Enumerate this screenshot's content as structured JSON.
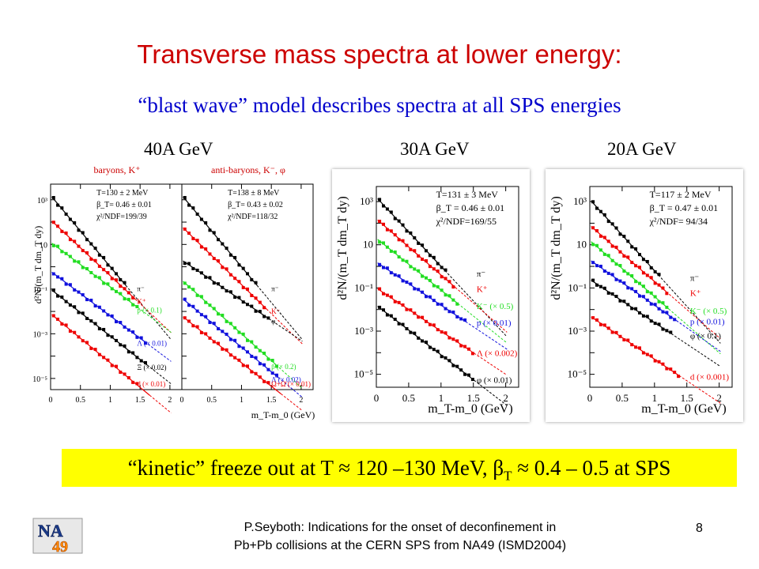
{
  "slide": {
    "title": "Transverse mass spectra at lower energy:",
    "subtitle": "“blast wave” model describes spectra at all SPS energies",
    "energies": [
      "40A GeV",
      "30A GeV",
      "20A GeV"
    ],
    "conclusion": {
      "prefix": "“kinetic” freeze out at  T ≈ 120 –130 MeV, β",
      "sub": "T",
      "suffix": " ≈ 0.4 – 0.5 at SPS"
    },
    "footer_line1": "P.Seyboth: Indications for the onset of deconfinement in",
    "footer_line2": "Pb+Pb collisions at the CERN SPS from NA49   (ISMD2004)",
    "page_number": "8",
    "logo_text": [
      "NA",
      "49"
    ]
  },
  "colors": {
    "title": "#cc0000",
    "subtitle": "#0000cc",
    "highlight": "#ffff00",
    "black": "#000000",
    "red": "#ee0000",
    "green": "#22dd22",
    "blue": "#1111dd"
  },
  "chart_data": [
    {
      "type": "scatter",
      "panel": "40A GeV, baryons",
      "title": "baryons, K⁺",
      "ylabel": "d²N/(m_T dm_T dy)",
      "xlim": [
        0,
        2.2
      ],
      "ylim_log10": [
        -5.5,
        3.7
      ],
      "x_ticks": [
        "0",
        "0.5",
        "1",
        "1.5",
        "2"
      ],
      "y_ticks": [
        "10³",
        "10",
        "10⁻¹",
        "10⁻³",
        "10⁻⁵"
      ],
      "fit_text": [
        "T=130 ± 2 MeV",
        "β_T= 0.46 ±  0.01",
        "χ²/NDF=199/39"
      ],
      "series": [
        {
          "name": "π⁻",
          "color": "#000000",
          "a": 3.2,
          "b": 3.2,
          "xmax": 1.3
        },
        {
          "name": "K⁺",
          "color": "#ee0000",
          "a": 2.1,
          "b": 2.5,
          "xmax": 1.45
        },
        {
          "name": "p (× 0.1)",
          "color": "#22dd22",
          "a": 1.1,
          "b": 2.0,
          "xmax": 1.5
        },
        {
          "name": "Λ (× 0.01)",
          "color": "#1111dd",
          "a": -0.2,
          "b": 2.0,
          "xmax": 1.6
        },
        {
          "name": "Ξ (× 0.02)",
          "color": "#000000",
          "a": -1.0,
          "b": 2.1,
          "xmax": 1.65
        },
        {
          "name": "d (× 0.01)",
          "color": "#ee0000",
          "a": -2.1,
          "b": 2.2,
          "xmax": 1.7
        }
      ]
    },
    {
      "type": "scatter",
      "panel": "40A GeV, anti-baryons",
      "title": "anti-baryons, K⁻, φ",
      "xlabel": "m_T-m_0 (GeV)",
      "xlim": [
        0,
        2.2
      ],
      "ylim_log10": [
        -5.5,
        3.7
      ],
      "x_ticks": [
        "0",
        "0.5",
        "1",
        "1.5",
        "2"
      ],
      "fit_text": [
        "T=138 ± 8 MeV",
        "β_T= 0.43 ±  0.02",
        "χ²/NDF=118/32"
      ],
      "series": [
        {
          "name": "π⁻",
          "color": "#000000",
          "a": 3.2,
          "b": 3.2,
          "xmax": 1.3
        },
        {
          "name": "K⁻",
          "color": "#ee0000",
          "a": 1.8,
          "b": 2.6,
          "xmax": 1.45
        },
        {
          "name": "φ",
          "color": "#000000",
          "a": 0.3,
          "b": 1.8,
          "xmax": 1.5
        },
        {
          "name": "p̄ (× 0.2)",
          "color": "#22dd22",
          "a": -0.6,
          "b": 2.4,
          "xmax": 1.6
        },
        {
          "name": "Λ̄ (× 0.02)",
          "color": "#1111dd",
          "a": -1.4,
          "b": 2.2,
          "xmax": 1.65
        },
        {
          "name": "Ω+Ω̄ (× 0.01)",
          "color": "#ee0000",
          "a": -2.2,
          "b": 2.1,
          "xmax": 1.7
        }
      ]
    },
    {
      "type": "scatter",
      "panel": "30A GeV",
      "ylabel": "d²N/(m_T dm_T dy)",
      "xlabel": "m_T-m_0 (GeV)",
      "xlim": [
        0,
        2.2
      ],
      "ylim_log10": [
        -5.6,
        3.7
      ],
      "x_ticks": [
        "0",
        "0.5",
        "1",
        "1.5",
        "2"
      ],
      "y_ticks": [
        "10³",
        "10",
        "10⁻¹",
        "10⁻³",
        "10⁻⁵"
      ],
      "fit_text": [
        "T=131 ± 3 MeV",
        "β_T = 0.46 ±  0.01",
        "χ²/NDF=169/55"
      ],
      "series": [
        {
          "name": "π⁻",
          "color": "#000000",
          "a": 3.2,
          "b": 3.2,
          "xmax": 1.1
        },
        {
          "name": "K⁺",
          "color": "#ee0000",
          "a": 2.2,
          "b": 2.6,
          "xmax": 1.25
        },
        {
          "name": "K⁻ (× 0.5)",
          "color": "#22dd22",
          "a": 1.3,
          "b": 2.4,
          "xmax": 1.3
        },
        {
          "name": "p (× 0.01)",
          "color": "#1111dd",
          "a": 0.2,
          "b": 2.0,
          "xmax": 1.4
        },
        {
          "name": "Λ (× 0.002)",
          "color": "#ee0000",
          "a": -1.0,
          "b": 2.0,
          "xmax": 1.5
        },
        {
          "name": "φ (× 0.01)",
          "color": "#000000",
          "a": -1.8,
          "b": 2.3,
          "xmax": 1.5
        }
      ]
    },
    {
      "type": "scatter",
      "panel": "20A GeV",
      "ylabel": "d²N/(m_T dm_T dy)",
      "xlabel": "m_T-m_0 (GeV)",
      "xlim": [
        0,
        2.2
      ],
      "ylim_log10": [
        -5.6,
        3.7
      ],
      "x_ticks": [
        "0",
        "0.5",
        "1",
        "1.5",
        "2"
      ],
      "y_ticks": [
        "10³",
        "10",
        "10⁻¹",
        "10⁻³",
        "10⁻⁵"
      ],
      "fit_text": [
        "T=117 ± 2 MeV",
        "β_T = 0.47 ±  0.01",
        "χ²/NDF= 94/34"
      ],
      "series": [
        {
          "name": "π⁻",
          "color": "#000000",
          "a": 3.1,
          "b": 3.3,
          "xmax": 1.1
        },
        {
          "name": "K⁺",
          "color": "#ee0000",
          "a": 1.9,
          "b": 2.6,
          "xmax": 1.2
        },
        {
          "name": "K⁻ (× 0.5)",
          "color": "#22dd22",
          "a": 1.2,
          "b": 2.6,
          "xmax": 1.25
        },
        {
          "name": "p (× 0.01)",
          "color": "#1111dd",
          "a": 0.3,
          "b": 2.1,
          "xmax": 1.35
        },
        {
          "name": "φ (× 0.1)",
          "color": "#000000",
          "a": -0.6,
          "b": 2.0,
          "xmax": 1.3
        },
        {
          "name": "d (× 0.001)",
          "color": "#ee0000",
          "a": -2.3,
          "b": 2.0,
          "xmax": 1.4
        }
      ]
    }
  ]
}
